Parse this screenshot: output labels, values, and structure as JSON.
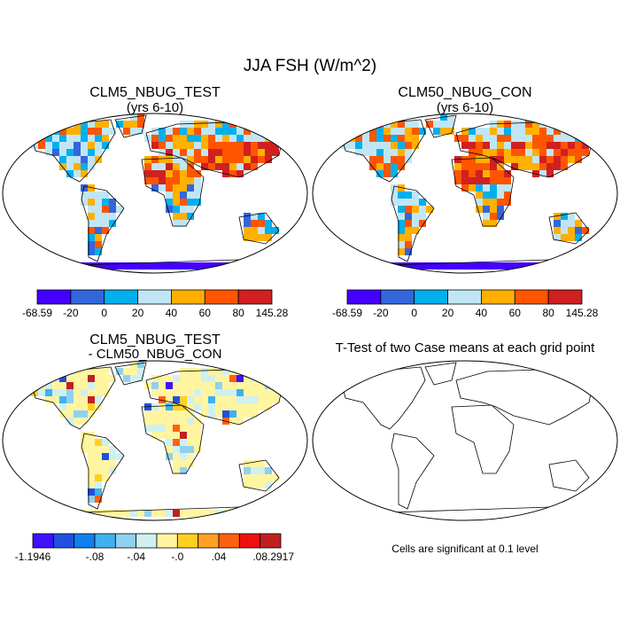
{
  "title": "JJA FSH (W/m^2)",
  "panels": [
    {
      "title": "CLM5_NBUG_TEST",
      "subtitle": "(yrs 6-10)",
      "colorbar": {
        "colors": [
          "#4400ff",
          "#3366dd",
          "#00b0ee",
          "#c0e6f5",
          "#ffb000",
          "#ff5500",
          "#d02020"
        ],
        "labels": [
          "-68.59",
          "-20",
          "0",
          "20",
          "40",
          "60",
          "80",
          "145.28"
        ]
      }
    },
    {
      "title": "CLM50_NBUG_CON",
      "subtitle": "(yrs 6-10)",
      "colorbar": {
        "colors": [
          "#4400ff",
          "#3366dd",
          "#00b0ee",
          "#c0e6f5",
          "#ffb000",
          "#ff5500",
          "#d02020"
        ],
        "labels": [
          "-68.59",
          "-20",
          "0",
          "20",
          "40",
          "60",
          "80",
          "145.28"
        ]
      }
    },
    {
      "title": "CLM5_NBUG_TEST",
      "subtitle": "- CLM50_NBUG_CON",
      "colorbar": {
        "colors": [
          "#4010ff",
          "#2050e0",
          "#1080f0",
          "#40b0f0",
          "#90d0f0",
          "#d0f0f0",
          "#fff5a0",
          "#ffd020",
          "#ffa020",
          "#ff6010",
          "#ee1010",
          "#c02020"
        ],
        "labels": [
          "-1.1946",
          "-.08",
          "-.04",
          "-.0",
          ".04",
          ".08",
          ".2917"
        ]
      }
    },
    {
      "title": "T-Test of two Case means at each grid point",
      "note": "Cells are significant at 0.1 level"
    }
  ]
}
